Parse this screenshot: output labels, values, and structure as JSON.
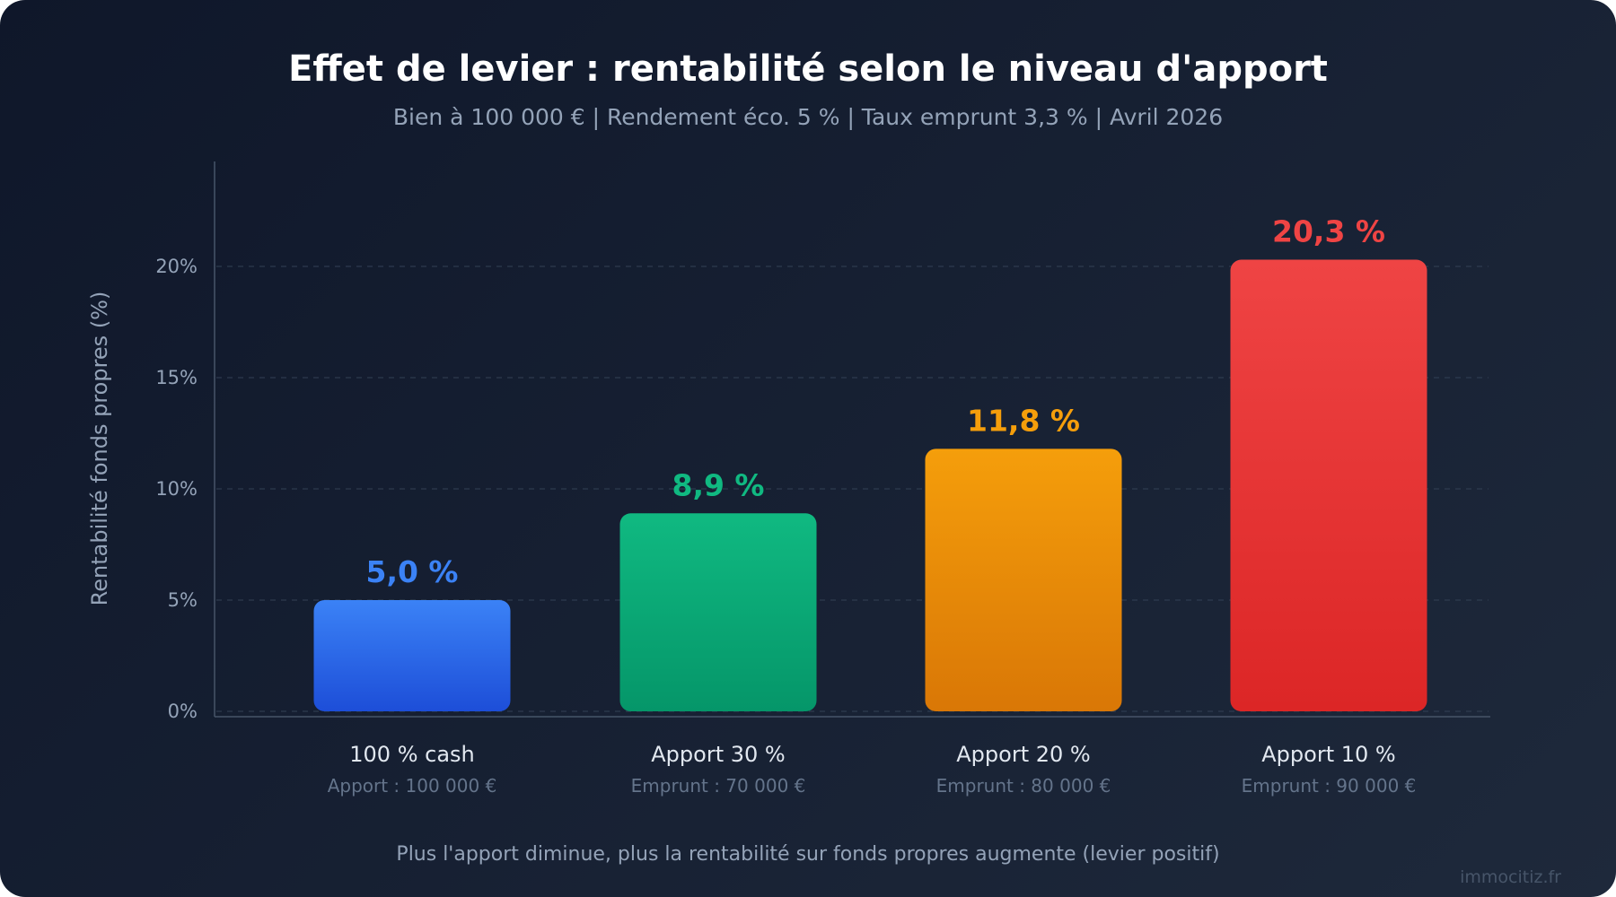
{
  "title": "Effet de levier : rentabilité selon le niveau d'apport",
  "subtitle": "Bien à 100 000 € | Rendement éco. 5 % | Taux emprunt 3,3 % | Avril 2026",
  "footer_note": "Plus l'apport diminue, plus la rentabilité sur fonds propres augmente (levier positif)",
  "watermark": "immocitiz.fr",
  "chart_data": {
    "type": "bar",
    "title": "Effet de levier : rentabilité selon le niveau d'apport",
    "subtitle": "Bien à 100 000 € | Rendement éco. 5 % | Taux emprunt 3,3 % | Avril 2026",
    "xlabel": "",
    "ylabel": "Rentabilité fonds propres (%)",
    "ylim": [
      0,
      25
    ],
    "yticks": [
      0,
      5,
      10,
      15,
      20
    ],
    "ytick_labels": [
      "0%",
      "5%",
      "10%",
      "15%",
      "20%"
    ],
    "grid": true,
    "categories": [
      "100 % cash",
      "Apport 30 %",
      "Apport 20 %",
      "Apport 10 %"
    ],
    "sublabels": [
      "Apport : 100 000 €",
      "Emprunt : 70 000 €",
      "Emprunt : 80 000 €",
      "Emprunt : 90 000 €"
    ],
    "values": [
      5.0,
      8.9,
      11.8,
      20.3
    ],
    "data_labels": [
      "5,0 %",
      "8,9 %",
      "11,8 %",
      "20,3 %"
    ],
    "colors": [
      {
        "top": "#3b82f6",
        "bottom": "#1d4ed8",
        "label": "#3b82f6"
      },
      {
        "top": "#10b981",
        "bottom": "#059669",
        "label": "#10b981"
      },
      {
        "top": "#f59e0b",
        "bottom": "#d97706",
        "label": "#f59e0b"
      },
      {
        "top": "#ef4444",
        "bottom": "#dc2626",
        "label": "#ef4444"
      }
    ]
  }
}
